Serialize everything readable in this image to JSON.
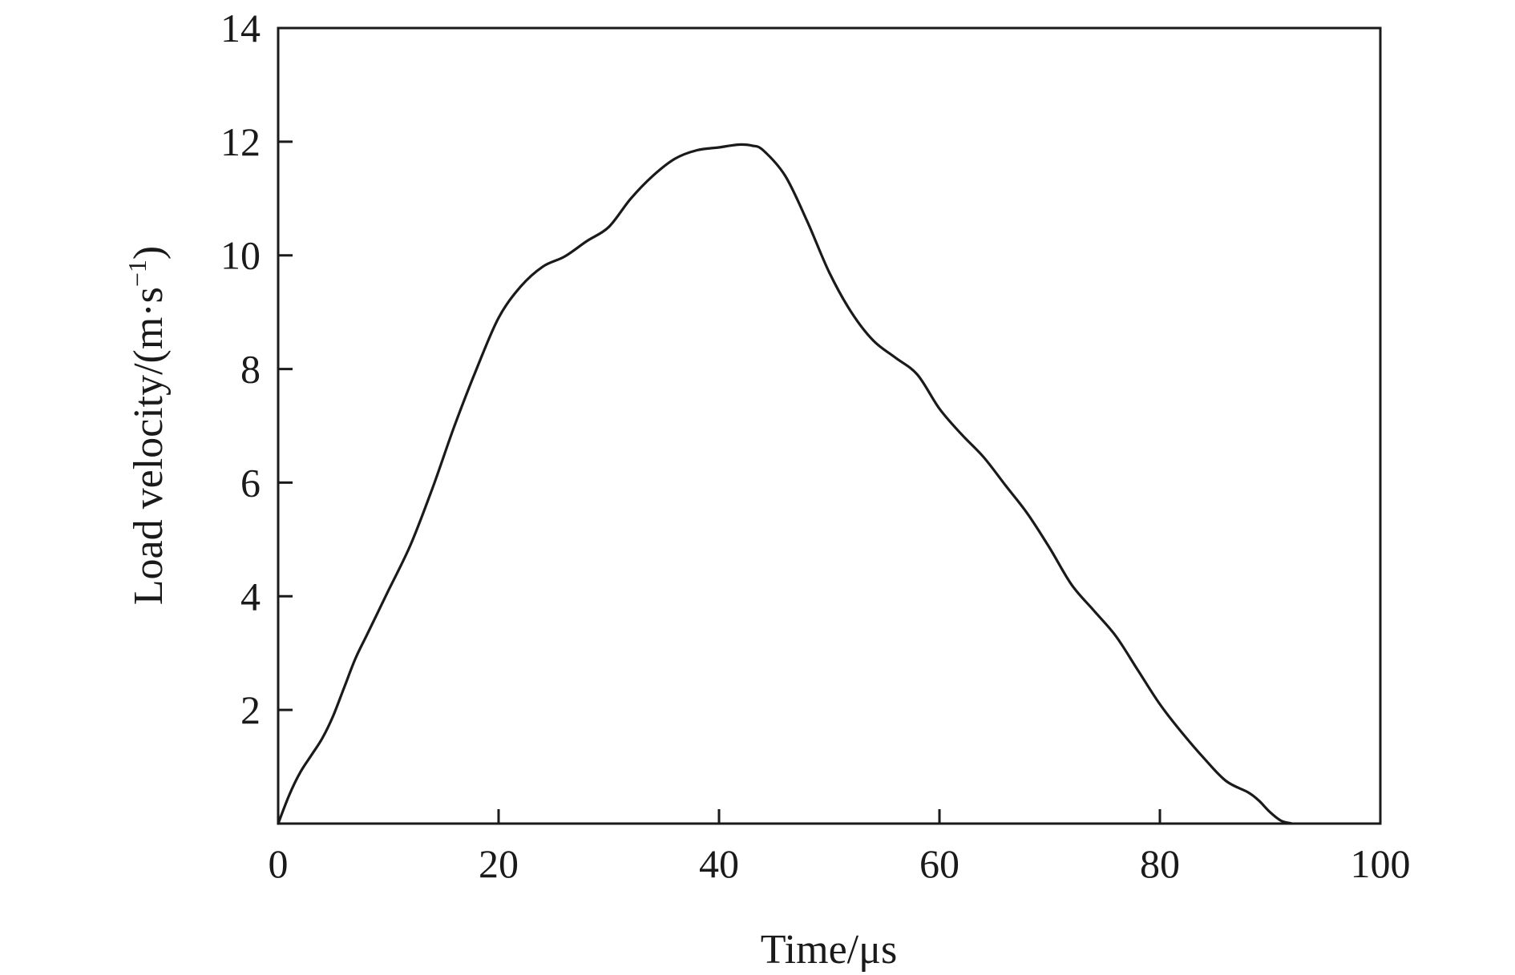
{
  "chart_data": {
    "type": "line",
    "title": "",
    "xlabel": "Time/μs",
    "ylabel_main": "Load velocity/(m·s",
    "ylabel_sup": "−1",
    "ylabel_close": ")",
    "xlim": [
      0,
      100
    ],
    "ylim": [
      0,
      14
    ],
    "x_ticks": [
      0,
      20,
      40,
      60,
      80,
      100
    ],
    "x_tick_labels": [
      "0",
      "20",
      "40",
      "60",
      "80",
      "100"
    ],
    "y_ticks": [
      2,
      4,
      6,
      8,
      10,
      12,
      14
    ],
    "y_tick_labels": [
      "2",
      "4",
      "6",
      "8",
      "10",
      "12",
      "14"
    ],
    "grid": false,
    "line_color": "#1a1a1a",
    "series": [
      {
        "x": [
          0,
          1,
          2,
          3,
          4,
          5,
          6,
          7,
          8,
          9,
          10,
          12,
          14,
          16,
          18,
          20,
          22,
          24,
          26,
          28,
          30,
          32,
          34,
          36,
          38,
          40,
          41,
          42,
          43,
          44,
          46,
          48,
          50,
          52,
          54,
          56,
          58,
          60,
          62,
          64,
          66,
          68,
          70,
          72,
          74,
          76,
          78,
          80,
          82,
          84,
          86,
          88,
          89,
          90,
          91,
          92
        ],
        "y": [
          0,
          0.5,
          0.9,
          1.2,
          1.5,
          1.9,
          2.4,
          2.9,
          3.3,
          3.7,
          4.1,
          4.9,
          5.9,
          7.0,
          8.0,
          8.9,
          9.45,
          9.8,
          9.98,
          10.25,
          10.5,
          11.0,
          11.4,
          11.7,
          11.85,
          11.9,
          11.93,
          11.95,
          11.93,
          11.85,
          11.4,
          10.6,
          9.7,
          9.0,
          8.5,
          8.2,
          7.9,
          7.3,
          6.85,
          6.45,
          5.95,
          5.45,
          4.85,
          4.2,
          3.75,
          3.3,
          2.7,
          2.1,
          1.6,
          1.15,
          0.75,
          0.55,
          0.4,
          0.2,
          0.05,
          0
        ]
      }
    ]
  }
}
